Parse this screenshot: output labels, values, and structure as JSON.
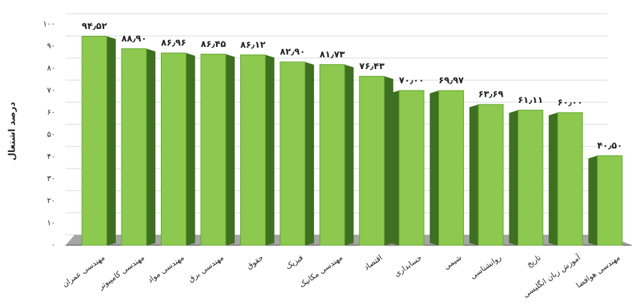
{
  "chart_data": {
    "type": "bar3d",
    "y_label": "درصد اشتغال",
    "categories": [
      "مهندسی عمران",
      "مهندسی کامپیوتر",
      "مهندسی مواد",
      "مهندسی برق",
      "حقوق",
      "فیزیک",
      "مهندسی مکانیک",
      "اقتصاد",
      "حسابداری",
      "شیمی",
      "روانشناسی",
      "تاریخ",
      "آموزش زبان انگلیسی",
      "مهندسی هوافضا"
    ],
    "values": [
      94.52,
      88.9,
      86.96,
      86.45,
      86.12,
      82.9,
      81.73,
      76.43,
      70.0,
      69.97,
      63.69,
      61.11,
      60.0,
      40.5
    ],
    "value_labels": [
      "۹۴٫۵۲",
      "۸۸٫۹۰",
      "۸۶٫۹۶",
      "۸۶٫۴۵",
      "۸۶٫۱۲",
      "۸۲٫۹۰",
      "۸۱٫۷۳",
      "۷۶٫۴۳",
      "۷۰٫۰۰",
      "۶۹٫۹۷",
      "۶۳٫۶۹",
      "۶۱٫۱۱",
      "۶۰٫۰۰",
      "۴۰٫۵۰"
    ],
    "color": "#8dc84f",
    "side_color": "#3f6f20",
    "ylim": [
      0,
      100
    ],
    "yticks": [
      {
        "value": 0,
        "label": "۰"
      },
      {
        "value": 10,
        "label": "۱۰"
      },
      {
        "value": 20,
        "label": "۲۰"
      },
      {
        "value": 30,
        "label": "۳۰"
      },
      {
        "value": 40,
        "label": "۴۰"
      },
      {
        "value": 50,
        "label": "۵۰"
      },
      {
        "value": 60,
        "label": "۶۰"
      },
      {
        "value": 70,
        "label": "۷۰"
      },
      {
        "value": 80,
        "label": "۸۰"
      },
      {
        "value": 90,
        "label": "۹۰"
      },
      {
        "value": 100,
        "label": "۱۰۰"
      }
    ],
    "grid": true
  }
}
